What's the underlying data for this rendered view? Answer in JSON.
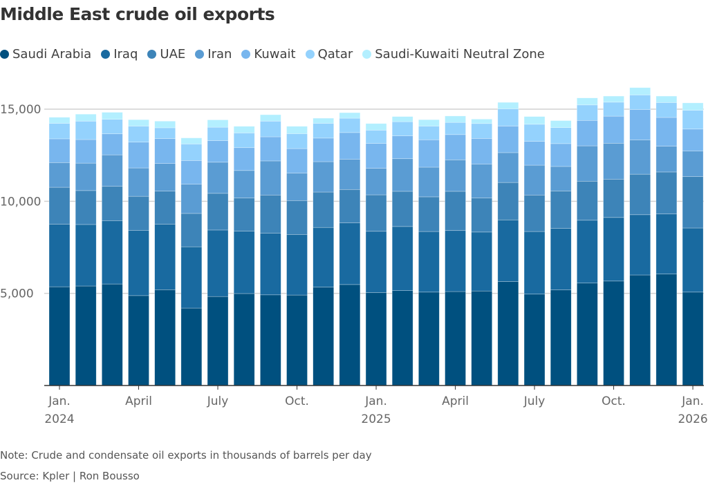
{
  "title": "Middle East crude oil exports",
  "note": "Note: Crude and condensate oil exports in thousands of barrels per day",
  "source": "Source: Kpler | Ron Bousso",
  "chart_data": {
    "type": "bar",
    "stacked": true,
    "title": "Middle East crude oil exports",
    "xlabel": "",
    "ylabel": "",
    "ylim": [
      0,
      16500
    ],
    "grid": true,
    "legend_position": "top-left",
    "yticks": [
      5000,
      10000,
      15000
    ],
    "ytick_labels": [
      "5,000",
      "10,000",
      "15,000"
    ],
    "xtick_labels": [
      {
        "index": 0,
        "label": "Jan.",
        "year": "2024"
      },
      {
        "index": 3,
        "label": "April",
        "year": ""
      },
      {
        "index": 6,
        "label": "July",
        "year": ""
      },
      {
        "index": 9,
        "label": "Oct.",
        "year": ""
      },
      {
        "index": 12,
        "label": "Jan.",
        "year": "2025"
      },
      {
        "index": 15,
        "label": "April",
        "year": ""
      },
      {
        "index": 18,
        "label": "July",
        "year": ""
      },
      {
        "index": 21,
        "label": "Oct.",
        "year": ""
      },
      {
        "index": 24,
        "label": "Jan.",
        "year": "2026"
      }
    ],
    "categories": [
      "2024-01",
      "2024-02",
      "2024-03",
      "2024-04",
      "2024-05",
      "2024-06",
      "2024-07",
      "2024-08",
      "2024-09",
      "2024-10",
      "2024-11",
      "2024-12",
      "2025-01",
      "2025-02",
      "2025-03",
      "2025-04",
      "2025-05",
      "2025-06",
      "2025-07",
      "2025-08",
      "2025-09",
      "2025-10",
      "2025-11",
      "2025-12",
      "2026-01"
    ],
    "series": [
      {
        "name": "Saudi Arabia",
        "color": "#00507f",
        "values": [
          5360,
          5400,
          5510,
          4880,
          5200,
          4200,
          4830,
          4990,
          4920,
          4910,
          5340,
          5480,
          5040,
          5150,
          5070,
          5100,
          5130,
          5640,
          4960,
          5190,
          5560,
          5670,
          6000,
          6050,
          5070
        ]
      },
      {
        "name": "Iraq",
        "color": "#196aa0",
        "values": [
          3400,
          3340,
          3440,
          3540,
          3560,
          3330,
          3610,
          3390,
          3350,
          3290,
          3240,
          3350,
          3330,
          3480,
          3290,
          3310,
          3200,
          3350,
          3400,
          3340,
          3410,
          3450,
          3270,
          3260,
          3480
        ]
      },
      {
        "name": "UAE",
        "color": "#3d84b8",
        "values": [
          2000,
          1840,
          1860,
          1850,
          1790,
          1810,
          1990,
          1800,
          2070,
          1840,
          1920,
          1810,
          1980,
          1910,
          1880,
          2130,
          1850,
          2030,
          1980,
          2030,
          2120,
          2080,
          2200,
          2280,
          2790
        ]
      },
      {
        "name": "Iran",
        "color": "#5a9cd3",
        "values": [
          1340,
          1490,
          1710,
          1540,
          1500,
          1590,
          1690,
          1490,
          1850,
          1490,
          1650,
          1640,
          1440,
          1770,
          1610,
          1710,
          1840,
          1620,
          1620,
          1330,
          1920,
          1950,
          1860,
          1400,
          1390
        ]
      },
      {
        "name": "Kuwait",
        "color": "#78b6ee",
        "values": [
          1290,
          1280,
          1140,
          1400,
          1350,
          1280,
          1170,
          1240,
          1310,
          1330,
          1280,
          1450,
          1350,
          1240,
          1490,
          1370,
          1390,
          1440,
          1290,
          1240,
          1380,
          1470,
          1650,
          1560,
          1190
        ]
      },
      {
        "name": "Qatar",
        "color": "#94d2fd",
        "values": [
          840,
          1000,
          790,
          870,
          590,
          900,
          730,
          800,
          850,
          810,
          800,
          780,
          720,
          770,
          740,
          660,
          810,
          940,
          930,
          870,
          840,
          760,
          790,
          810,
          1020
        ]
      },
      {
        "name": "Saudi-Kuwaiti Neutral Zone",
        "color": "#b3efff",
        "values": [
          330,
          380,
          380,
          350,
          360,
          330,
          400,
          360,
          350,
          400,
          280,
          300,
          360,
          280,
          350,
          350,
          240,
          350,
          420,
          380,
          380,
          330,
          400,
          350,
          400
        ]
      }
    ],
    "colors": {
      "grid": "#d0d0d0",
      "axis": "#333333",
      "tick_text": "#666666"
    }
  }
}
